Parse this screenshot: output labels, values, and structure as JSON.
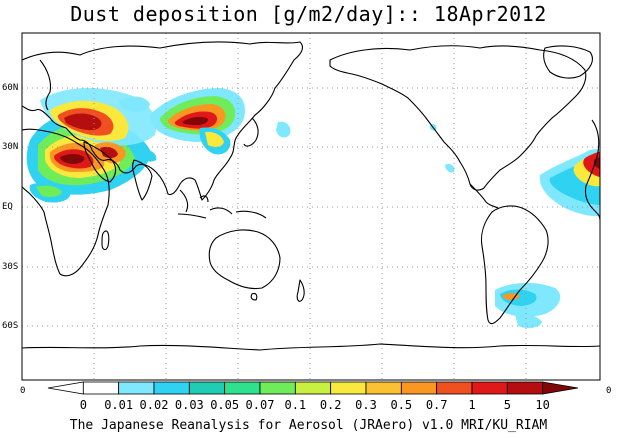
{
  "title": "Dust deposition [g/m2/day]:: 18Apr2012",
  "credit": "The Japanese Reanalysis for Aerosol (JRAero) v1.0 MRI/KU_RIAM",
  "lat_labels": [
    "60N",
    "30N",
    "EQ",
    "30S",
    "60S"
  ],
  "edge_labels": {
    "left": "0",
    "right": "0"
  },
  "colorbar": {
    "labels": [
      "0",
      "0.01",
      "0.02",
      "0.03",
      "0.05",
      "0.07",
      "0.1",
      "0.2",
      "0.3",
      "0.5",
      "0.7",
      "1",
      "5",
      "10"
    ],
    "colors": [
      "#ffffff",
      "#ffffff",
      "#7fe8ff",
      "#2fd2f0",
      "#1fcdb4",
      "#2fe08c",
      "#6fec5a",
      "#c8f040",
      "#fae83c",
      "#fcc034",
      "#fa9622",
      "#f05020",
      "#e01818",
      "#b40e0e",
      "#820808"
    ]
  },
  "map_colors": {
    "coast": "#000000",
    "grid": "#9a9a9a",
    "frame": "#000000"
  }
}
